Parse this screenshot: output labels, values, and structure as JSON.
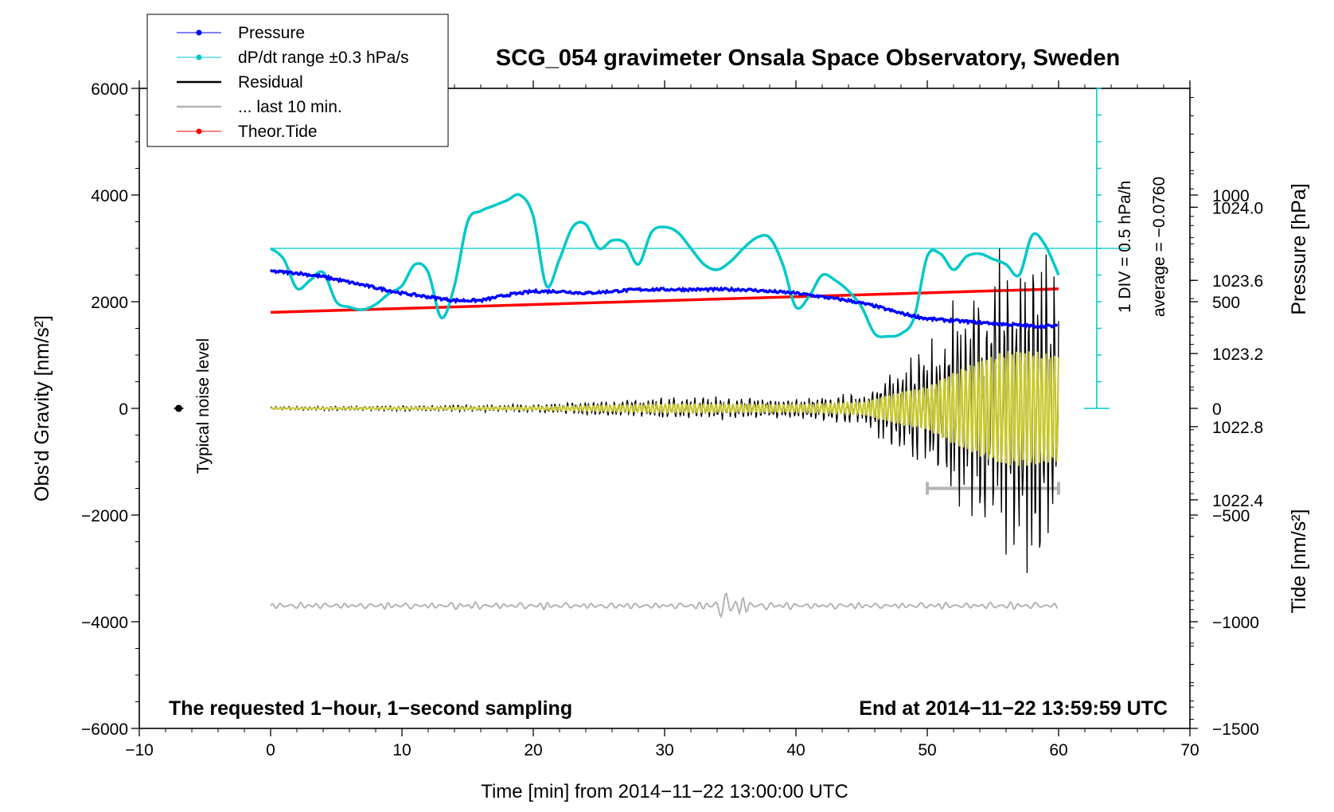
{
  "chart_data": {
    "type": "line",
    "title": "SCG_054 gravimeter Onsala Space Observatory, Sweden",
    "xlabel": "Time [min] from 2014−11−22 13:00:00 UTC",
    "ylabel_left": "Obs'd Gravity [nm/s²]",
    "ylabel_right_top": "Pressure [hPa]",
    "ylabel_right_bottom": "Tide [nm/s²]",
    "xlim": [
      -10,
      70
    ],
    "ylim": [
      -6000,
      6000
    ],
    "x_ticks": [
      "−10",
      "0",
      "10",
      "20",
      "30",
      "40",
      "50",
      "60",
      "70"
    ],
    "y_ticks_left": [
      "−6000",
      "−4000",
      "−2000",
      "0",
      "2000",
      "4000",
      "6000"
    ],
    "pressure_axis": {
      "ticks": [
        "1022.4",
        "1022.8",
        "1023.2",
        "1023.6",
        "1024.0"
      ],
      "range_hpa": [
        1021.15,
        1024.65
      ]
    },
    "tide_axis": {
      "ticks": [
        "−1500",
        "−1000",
        "−500",
        "0",
        "500",
        "1000"
      ],
      "range_nms2": [
        -1500,
        1500
      ]
    },
    "dpdt_scale": {
      "text1": "1 DIV = 0.5 hPa/h",
      "text2": "average = −0.0760",
      "divisions": 12
    },
    "noise_label": "Typical noise level",
    "bottom_left_note": "The requested 1−hour, 1−second sampling",
    "bottom_right_note": "End at 2014−11−22 13:59:59 UTC",
    "legend": [
      {
        "label": "Pressure",
        "color": "#0000ff"
      },
      {
        "label": "dP/dt range ±0.3 hPa/s",
        "color": "#00c8c8"
      },
      {
        "label": "Residual",
        "color": "#000000"
      },
      {
        "label": "... last 10 min.",
        "color": "#b4b4b4"
      },
      {
        "label": "Theor.Tide",
        "color": "#ff0000"
      }
    ],
    "series": [
      {
        "name": "Pressure",
        "color": "#0000ff",
        "axis": "pressure_hpa",
        "x": [
          0,
          2,
          4,
          6,
          8,
          10,
          12,
          14,
          16,
          18,
          20,
          22,
          24,
          26,
          28,
          30,
          32,
          34,
          36,
          38,
          40,
          42,
          44,
          46,
          48,
          50,
          52,
          54,
          56,
          58,
          60
        ],
        "y": [
          1023.65,
          1023.64,
          1023.62,
          1023.59,
          1023.56,
          1023.53,
          1023.51,
          1023.49,
          1023.49,
          1023.52,
          1023.54,
          1023.54,
          1023.53,
          1023.54,
          1023.55,
          1023.55,
          1023.55,
          1023.55,
          1023.55,
          1023.54,
          1023.53,
          1023.51,
          1023.49,
          1023.46,
          1023.42,
          1023.39,
          1023.38,
          1023.37,
          1023.36,
          1023.35,
          1023.35
        ]
      },
      {
        "name": "dP/dt",
        "color": "#00c8c8",
        "axis": "gravity",
        "x": [
          0,
          1,
          2,
          3,
          4,
          5,
          6,
          7,
          8,
          9,
          10,
          11,
          12,
          13,
          14,
          15,
          16,
          17,
          18,
          19,
          20,
          21,
          22,
          23,
          24,
          25,
          26,
          27,
          28,
          29,
          30,
          31,
          32,
          33,
          34,
          35,
          36,
          37,
          38,
          39,
          40,
          41,
          42,
          43,
          44,
          45,
          46,
          47,
          48,
          49,
          50,
          51,
          52,
          53,
          54,
          55,
          56,
          57,
          58,
          59,
          60
        ],
        "y": [
          3000,
          2800,
          2250,
          2400,
          2550,
          2000,
          1900,
          1850,
          1950,
          2150,
          2300,
          2700,
          2550,
          1700,
          2300,
          3500,
          3700,
          3800,
          3900,
          4000,
          3600,
          2300,
          2800,
          3400,
          3450,
          3000,
          3150,
          3100,
          2700,
          3300,
          3400,
          3300,
          3000,
          2700,
          2600,
          2750,
          3000,
          3200,
          3200,
          2700,
          1900,
          2100,
          2500,
          2400,
          2200,
          1900,
          1400,
          1350,
          1400,
          1700,
          2850,
          2900,
          2600,
          2850,
          2900,
          2800,
          2700,
          2500,
          3250,
          3050,
          2500
        ]
      },
      {
        "name": "Residual",
        "color": "#000000",
        "axis": "gravity",
        "x": [
          0,
          20,
          30,
          40,
          45,
          48,
          50,
          52,
          54,
          56,
          58,
          60
        ],
        "amplitude": [
          25,
          60,
          170,
          150,
          240,
          700,
          900,
          1500,
          2000,
          2400,
          2400,
          2200
        ]
      },
      {
        "name": "... last 10 min.",
        "color": "#b4b4b4",
        "axis": "gravity",
        "x": [
          0,
          60
        ],
        "baseline": -3700,
        "amplitude": [
          120,
          330
        ],
        "bar_x": [
          50,
          60
        ],
        "bar_y": -1500
      },
      {
        "name": "Theor.Tide",
        "color": "#ff0000",
        "axis": "tide_nms2",
        "x": [
          0,
          60
        ],
        "y": [
          450,
          560
        ]
      }
    ],
    "noise_point": {
      "x": -7,
      "y": 0
    }
  }
}
